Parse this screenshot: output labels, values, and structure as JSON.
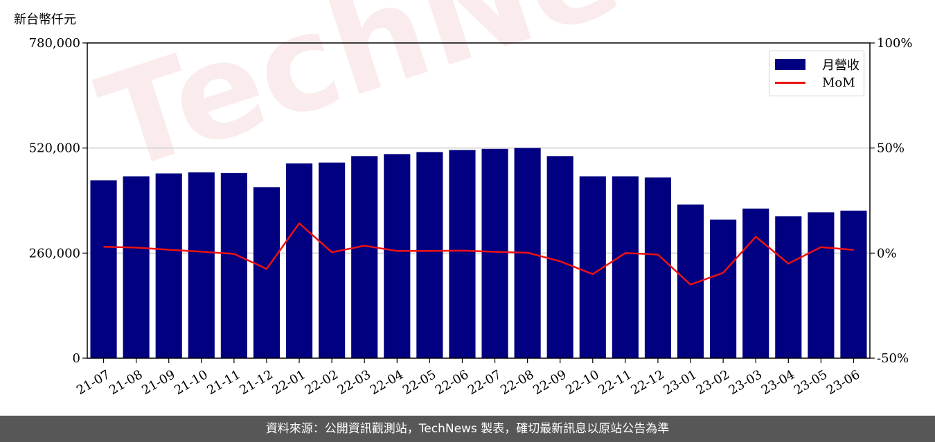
{
  "unit_label": "新台幣仟元",
  "footer": "資料來源：公開資訊觀測站，TechNews 製表，確切最新訊息以原站公告為準",
  "watermark": "TechNews",
  "colors": {
    "bar": "#000080",
    "line": "#ee1111",
    "footer_bg": "#575757"
  },
  "chart_data": {
    "type": "bar",
    "categories": [
      "21-07",
      "21-08",
      "21-09",
      "21-10",
      "21-11",
      "21-12",
      "22-01",
      "22-02",
      "22-03",
      "22-04",
      "22-05",
      "22-06",
      "22-07",
      "22-08",
      "22-09",
      "22-10",
      "22-11",
      "22-12",
      "23-01",
      "23-02",
      "23-03",
      "23-04",
      "23-05",
      "23-06"
    ],
    "series": [
      {
        "name": "月營收",
        "axis": "left",
        "type": "bar",
        "values": [
          440000,
          450000,
          457000,
          460000,
          458000,
          423000,
          482000,
          484000,
          500000,
          505000,
          510000,
          515000,
          518000,
          520000,
          500000,
          450000,
          450000,
          447000,
          380000,
          343000,
          370000,
          351000,
          361000,
          365000
        ]
      },
      {
        "name": "MoM",
        "axis": "right",
        "type": "line",
        "values": [
          3.0,
          2.6,
          1.6,
          0.7,
          -0.4,
          -7.5,
          14.2,
          0.4,
          3.5,
          1.0,
          1.0,
          1.2,
          0.6,
          0.2,
          -3.9,
          -10.0,
          0.0,
          -0.7,
          -15.0,
          -9.4,
          7.8,
          -5.0,
          2.8,
          1.5
        ]
      }
    ],
    "y_left": {
      "ylim": [
        0,
        780000
      ],
      "ticks": [
        "0",
        "260,000",
        "520,000",
        "780,000"
      ],
      "tick_values": [
        0,
        260000,
        520000,
        780000
      ]
    },
    "y_right": {
      "ylim": [
        -50,
        100
      ],
      "ticks": [
        "-50%",
        "0%",
        "50%",
        "100%"
      ],
      "tick_values": [
        -50,
        0,
        50,
        100
      ]
    },
    "grid": "horizontal",
    "legend_position": "top-right"
  }
}
